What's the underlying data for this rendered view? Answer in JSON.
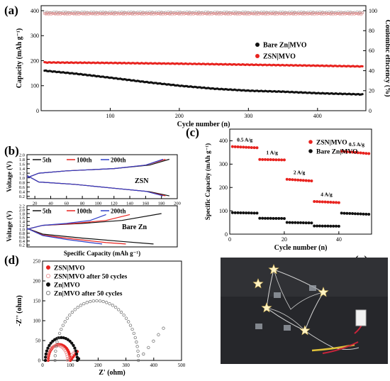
{
  "panel_labels": [
    "(a)",
    "(b)",
    "(c)",
    "(d)",
    "(e)"
  ],
  "chart_data": [
    {
      "id": "a",
      "type": "scatter",
      "xlabel": "Cycle number (n)",
      "ylabel": "Capacity (mAh g⁻¹)",
      "y2label": "Coulombic efficiency (%)",
      "xlim": [
        0,
        470
      ],
      "ylim": [
        0,
        420
      ],
      "y2lim": [
        0,
        105
      ],
      "xticks": [
        100,
        200,
        300,
        400
      ],
      "yticks": [
        0,
        100,
        200,
        300,
        400
      ],
      "y2ticks": [
        0,
        20,
        40,
        60,
        80,
        100
      ],
      "legend_position": "center-right",
      "series": [
        {
          "name": "Bare Zn|MVO",
          "color": "#111111",
          "axis": "left",
          "x": [
            5,
            50,
            100,
            150,
            200,
            250,
            300,
            350,
            400,
            465
          ],
          "y": [
            160,
            148,
            132,
            115,
            100,
            88,
            80,
            76,
            70,
            65
          ]
        },
        {
          "name": "ZSN|MVO",
          "color": "#e8231f",
          "axis": "left",
          "x": [
            5,
            100,
            200,
            300,
            400,
            465
          ],
          "y": [
            193,
            191,
            188,
            184,
            180,
            177
          ]
        },
        {
          "name": "CE Bare Zn|MVO",
          "color": "#a0a0a0",
          "axis": "right",
          "hollow": true,
          "x": [
            5,
            465
          ],
          "y": [
            98,
            98
          ]
        },
        {
          "name": "CE ZSN|MVO",
          "color": "#e88a8a",
          "axis": "right",
          "hollow": true,
          "x": [
            5,
            465
          ],
          "y": [
            97,
            97
          ]
        }
      ]
    },
    {
      "id": "b_top",
      "type": "line",
      "annotation": "ZSN",
      "ylabel": "Voltage (V)",
      "xlim": [
        10,
        200
      ],
      "ylim": [
        0.1,
        2.0
      ],
      "xticks": [
        20,
        40,
        60,
        80,
        100,
        120,
        140,
        160,
        180,
        200
      ],
      "yticks": [
        0.2,
        0.4,
        0.6,
        0.8,
        1.0,
        1.2,
        1.4,
        1.6,
        1.8,
        2.0
      ],
      "legend_position": "top",
      "series": [
        {
          "name": "5th",
          "color": "#111111",
          "charge": [
            [
              10,
              1.0
            ],
            [
              25,
              1.2
            ],
            [
              60,
              1.3
            ],
            [
              120,
              1.4
            ],
            [
              165,
              1.55
            ],
            [
              190,
              1.8
            ]
          ],
          "discharge": [
            [
              10,
              1.1
            ],
            [
              25,
              0.82
            ],
            [
              70,
              0.72
            ],
            [
              120,
              0.55
            ],
            [
              165,
              0.4
            ],
            [
              190,
              0.22
            ]
          ]
        },
        {
          "name": "100th",
          "color": "#e8231f",
          "charge": [
            [
              10,
              1.0
            ],
            [
              25,
              1.2
            ],
            [
              60,
              1.3
            ],
            [
              120,
              1.4
            ],
            [
              160,
              1.55
            ],
            [
              185,
              1.8
            ]
          ],
          "discharge": [
            [
              10,
              1.1
            ],
            [
              25,
              0.82
            ],
            [
              70,
              0.72
            ],
            [
              120,
              0.55
            ],
            [
              160,
              0.42
            ],
            [
              185,
              0.22
            ]
          ]
        },
        {
          "name": "200th",
          "color": "#2e3fc9",
          "charge": [
            [
              10,
              1.0
            ],
            [
              25,
              1.2
            ],
            [
              60,
              1.3
            ],
            [
              120,
              1.4
            ],
            [
              160,
              1.55
            ],
            [
              182,
              1.8
            ]
          ],
          "discharge": [
            [
              10,
              1.1
            ],
            [
              25,
              0.82
            ],
            [
              70,
              0.72
            ],
            [
              120,
              0.55
            ],
            [
              160,
              0.42
            ],
            [
              182,
              0.22
            ]
          ]
        }
      ]
    },
    {
      "id": "b_bottom",
      "type": "line",
      "annotation": "Bare Zn",
      "xlabel": "Specific Capacity (mAh g⁻¹)",
      "ylabel": "Voltage (V)",
      "xlim": [
        10,
        200
      ],
      "ylim": [
        0.1,
        2.2
      ],
      "yticks": [
        0.2,
        0.4,
        0.6,
        0.8,
        1.0,
        1.2,
        1.4,
        1.6,
        1.8,
        2.0,
        2.2
      ],
      "legend_position": "top",
      "series": [
        {
          "name": "5th",
          "color": "#111111",
          "charge": [
            [
              10,
              1.0
            ],
            [
              30,
              1.2
            ],
            [
              80,
              1.3
            ],
            [
              130,
              1.45
            ],
            [
              180,
              1.8
            ]
          ],
          "discharge": [
            [
              10,
              1.05
            ],
            [
              30,
              0.75
            ],
            [
              80,
              0.55
            ],
            [
              130,
              0.38
            ],
            [
              170,
              0.25
            ]
          ]
        },
        {
          "name": "100th",
          "color": "#e8231f",
          "charge": [
            [
              10,
              1.0
            ],
            [
              30,
              1.2
            ],
            [
              70,
              1.3
            ],
            [
              110,
              1.45
            ],
            [
              140,
              1.75
            ]
          ],
          "discharge": [
            [
              10,
              1.05
            ],
            [
              30,
              0.7
            ],
            [
              70,
              0.5
            ],
            [
              110,
              0.32
            ],
            [
              135,
              0.25
            ]
          ]
        },
        {
          "name": "200th",
          "color": "#2e3fc9",
          "charge": [
            [
              10,
              1.0
            ],
            [
              30,
              1.2
            ],
            [
              60,
              1.3
            ],
            [
              90,
              1.45
            ],
            [
              110,
              1.75
            ]
          ],
          "discharge": [
            [
              10,
              1.05
            ],
            [
              30,
              0.68
            ],
            [
              60,
              0.48
            ],
            [
              90,
              0.32
            ],
            [
              105,
              0.25
            ]
          ]
        }
      ]
    },
    {
      "id": "c",
      "type": "scatter",
      "xlabel": "Cycle number (n)",
      "ylabel": "Specific Capacity (mAh g⁻¹)",
      "xlim": [
        0,
        52
      ],
      "ylim": [
        0,
        450
      ],
      "xticks": [
        0,
        20,
        40
      ],
      "yticks": [
        0,
        100,
        200,
        300,
        400
      ],
      "legend_position": "top-right",
      "annotations": [
        "0.5 A/g",
        "1 A/g",
        "2 A/g",
        "4 A/g",
        "0.5 A/g"
      ],
      "series": [
        {
          "name": "ZSN|MVO",
          "color": "#e8231f",
          "segments": [
            {
              "from": 1,
              "to": 10,
              "y": [
                375,
                370
              ]
            },
            {
              "from": 11,
              "to": 20,
              "y": [
                320,
                318
              ]
            },
            {
              "from": 21,
              "to": 30,
              "y": [
                235,
                228
              ]
            },
            {
              "from": 31,
              "to": 40,
              "y": [
                140,
                135
              ]
            },
            {
              "from": 41,
              "to": 51,
              "y": [
                355,
                345
              ]
            }
          ]
        },
        {
          "name": "Bare Zn|MVO",
          "color": "#111111",
          "segments": [
            {
              "from": 1,
              "to": 10,
              "y": [
                92,
                90
              ]
            },
            {
              "from": 11,
              "to": 20,
              "y": [
                68,
                67
              ]
            },
            {
              "from": 21,
              "to": 30,
              "y": [
                50,
                48
              ]
            },
            {
              "from": 31,
              "to": 40,
              "y": [
                35,
                34
              ]
            },
            {
              "from": 41,
              "to": 51,
              "y": [
                90,
                85
              ]
            }
          ]
        }
      ]
    },
    {
      "id": "d",
      "type": "scatter",
      "xlabel": "Z' (ohm)",
      "ylabel": "-Z'' (ohm)",
      "xlim": [
        0,
        500
      ],
      "ylim": [
        0,
        250
      ],
      "xticks": [
        0,
        100,
        200,
        300,
        400,
        500
      ],
      "yticks": [
        0,
        50,
        100,
        150,
        200,
        250
      ],
      "legend_position": "top-left",
      "series": [
        {
          "name": "ZSN|MVO",
          "color": "#e8231f",
          "hollow": false,
          "arc": {
            "start": 20,
            "end": 100,
            "tail_len": 25
          }
        },
        {
          "name": "ZSN|MVO after 50 cycles",
          "color": "#e88a8a",
          "hollow": true,
          "arc": {
            "start": 15,
            "end": 90,
            "tail_len": 25
          }
        },
        {
          "name": "Zn|MVO",
          "color": "#111111",
          "hollow": false,
          "arc": {
            "start": 10,
            "end": 125,
            "tail_len": 5
          }
        },
        {
          "name": "Zn|MVO after 50 cycles",
          "color": "#666666",
          "hollow": true,
          "arc": {
            "start": 45,
            "end": 345,
            "tail_len": 90
          }
        }
      ]
    }
  ]
}
